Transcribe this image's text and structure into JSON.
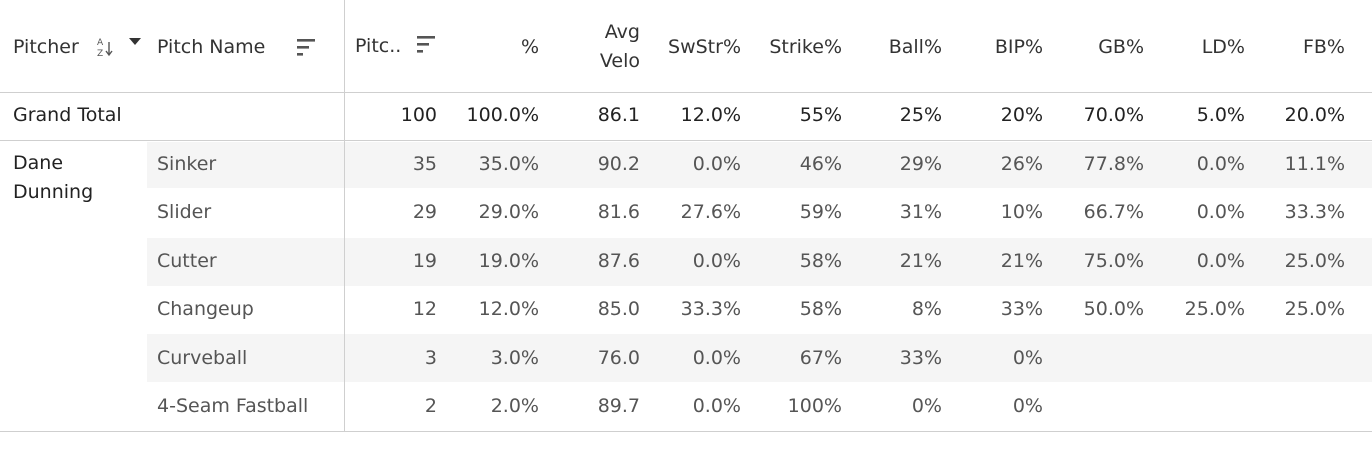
{
  "header": {
    "pitcher": "Pitcher",
    "pitch_name": "Pitch Name",
    "pitches": "Pitc..",
    "pct": "%",
    "avg_velo_line1": "Avg",
    "avg_velo_line2": "Velo",
    "swstr": "SwStr%",
    "strike": "Strike%",
    "ball": "Ball%",
    "bip": "BIP%",
    "gb": "GB%",
    "ld": "LD%",
    "fb": "FB%"
  },
  "grand_total": {
    "label": "Grand Total",
    "pitches": "100",
    "pct": "100.0%",
    "avg_velo": "86.1",
    "swstr": "12.0%",
    "strike": "55%",
    "ball": "25%",
    "bip": "20%",
    "gb": "70.0%",
    "ld": "5.0%",
    "fb": "20.0%"
  },
  "pitcher_name_line1": "Dane",
  "pitcher_name_line2": "Dunning",
  "rows": [
    {
      "name": "Sinker",
      "pitches": "35",
      "pct": "35.0%",
      "avg_velo": "90.2",
      "swstr": "0.0%",
      "strike": "46%",
      "ball": "29%",
      "bip": "26%",
      "gb": "77.8%",
      "ld": "0.0%",
      "fb": "11.1%"
    },
    {
      "name": "Slider",
      "pitches": "29",
      "pct": "29.0%",
      "avg_velo": "81.6",
      "swstr": "27.6%",
      "strike": "59%",
      "ball": "31%",
      "bip": "10%",
      "gb": "66.7%",
      "ld": "0.0%",
      "fb": "33.3%"
    },
    {
      "name": "Cutter",
      "pitches": "19",
      "pct": "19.0%",
      "avg_velo": "87.6",
      "swstr": "0.0%",
      "strike": "58%",
      "ball": "21%",
      "bip": "21%",
      "gb": "75.0%",
      "ld": "0.0%",
      "fb": "25.0%"
    },
    {
      "name": "Changeup",
      "pitches": "12",
      "pct": "12.0%",
      "avg_velo": "85.0",
      "swstr": "33.3%",
      "strike": "58%",
      "ball": "8%",
      "bip": "33%",
      "gb": "50.0%",
      "ld": "25.0%",
      "fb": "25.0%"
    },
    {
      "name": "Curveball",
      "pitches": "3",
      "pct": "3.0%",
      "avg_velo": "76.0",
      "swstr": "0.0%",
      "strike": "67%",
      "ball": "33%",
      "bip": "0%",
      "gb": "",
      "ld": "",
      "fb": ""
    },
    {
      "name": "4-Seam Fastball",
      "pitches": "2",
      "pct": "2.0%",
      "avg_velo": "89.7",
      "swstr": "0.0%",
      "strike": "100%",
      "ball": "0%",
      "bip": "0%",
      "gb": "",
      "ld": "",
      "fb": ""
    }
  ],
  "icons": {
    "pitcher_sort": "sort-az-icon",
    "pitcher_dropdown": "caret-down-icon",
    "pitch_name_sort": "sort-icon",
    "pitches_sort": "sort-icon"
  },
  "colors": {
    "text": "#333333",
    "row_alt": "#f5f5f5",
    "grid": "#cfcfcf"
  }
}
